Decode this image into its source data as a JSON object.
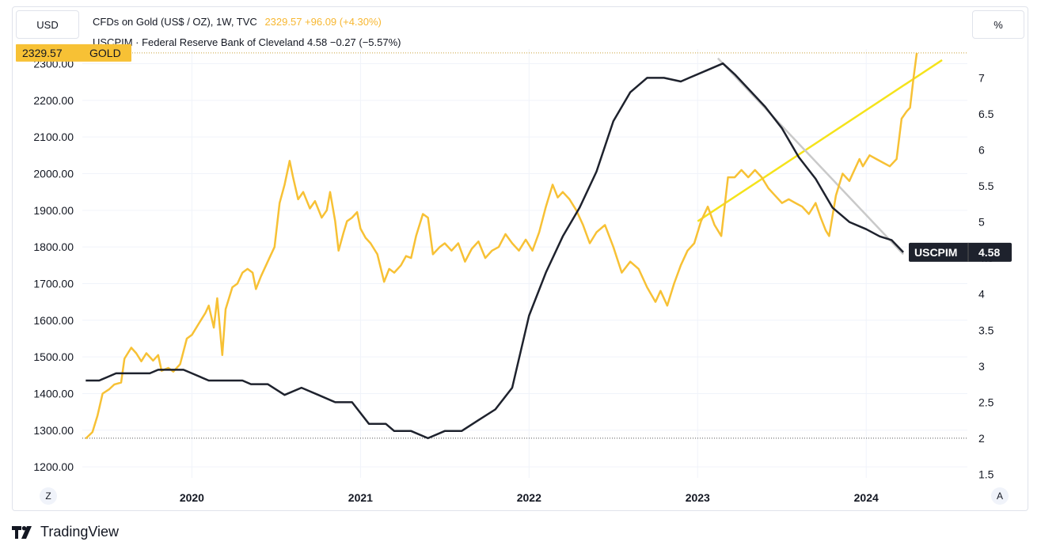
{
  "left_unit": "USD",
  "right_unit": "%",
  "legend": {
    "gold_prefix": "CFDs on Gold (US$ / OZ), 1W, TVC",
    "gold_values": "2329.57  +96.09 (+4.30%)",
    "cpi_text": "USCPIM · Federal Reserve Bank of Cleveland  4.58  −0.27 (−5.57%)"
  },
  "corner_left": "Z",
  "corner_right": "A",
  "brand_name": "TradingView",
  "colors": {
    "gold": "#f7c135",
    "cpi": "#1e222d",
    "trend_up": "#f5e31b",
    "trend_down": "#c9c9c9",
    "grid": "#f0f3fa"
  },
  "chart_data": {
    "type": "line",
    "x_tick_labels": [
      "2020",
      "2021",
      "2022",
      "2023",
      "2024"
    ],
    "left_axis": {
      "ticks": [
        "1200.00",
        "1300.00",
        "1400.00",
        "1500.00",
        "1600.00",
        "1700.00",
        "1800.00",
        "1900.00",
        "2000.00",
        "2100.00",
        "2200.00",
        "2300.00"
      ],
      "ylim": [
        1170,
        2340
      ]
    },
    "right_axis": {
      "ticks": [
        "1.5",
        "2",
        "2.5",
        "3",
        "3.5",
        "4",
        "4.5",
        "5",
        "5.5",
        "6",
        "6.5",
        "7"
      ],
      "ylim": [
        1.45,
        7.4
      ]
    },
    "xlim": [
      2019.35,
      2024.6
    ],
    "series": [
      {
        "name": "GOLD",
        "axis": "left",
        "last_label": "2329.57",
        "points": [
          [
            2019.37,
            1277
          ],
          [
            2019.41,
            1295
          ],
          [
            2019.44,
            1340
          ],
          [
            2019.47,
            1400
          ],
          [
            2019.51,
            1412
          ],
          [
            2019.54,
            1425
          ],
          [
            2019.58,
            1430
          ],
          [
            2019.6,
            1495
          ],
          [
            2019.64,
            1525
          ],
          [
            2019.67,
            1510
          ],
          [
            2019.7,
            1488
          ],
          [
            2019.73,
            1510
          ],
          [
            2019.77,
            1490
          ],
          [
            2019.8,
            1505
          ],
          [
            2019.82,
            1462
          ],
          [
            2019.86,
            1470
          ],
          [
            2019.89,
            1460
          ],
          [
            2019.93,
            1480
          ],
          [
            2019.97,
            1550
          ],
          [
            2020.0,
            1560
          ],
          [
            2020.04,
            1590
          ],
          [
            2020.08,
            1620
          ],
          [
            2020.1,
            1640
          ],
          [
            2020.13,
            1580
          ],
          [
            2020.15,
            1660
          ],
          [
            2020.18,
            1505
          ],
          [
            2020.2,
            1630
          ],
          [
            2020.24,
            1690
          ],
          [
            2020.27,
            1700
          ],
          [
            2020.3,
            1730
          ],
          [
            2020.33,
            1740
          ],
          [
            2020.36,
            1730
          ],
          [
            2020.38,
            1685
          ],
          [
            2020.41,
            1720
          ],
          [
            2020.45,
            1760
          ],
          [
            2020.49,
            1800
          ],
          [
            2020.52,
            1920
          ],
          [
            2020.55,
            1970
          ],
          [
            2020.58,
            2035
          ],
          [
            2020.6,
            1990
          ],
          [
            2020.63,
            1930
          ],
          [
            2020.66,
            1950
          ],
          [
            2020.7,
            1905
          ],
          [
            2020.73,
            1925
          ],
          [
            2020.77,
            1880
          ],
          [
            2020.8,
            1900
          ],
          [
            2020.82,
            1950
          ],
          [
            2020.85,
            1870
          ],
          [
            2020.87,
            1790
          ],
          [
            2020.9,
            1840
          ],
          [
            2020.92,
            1870
          ],
          [
            2020.95,
            1880
          ],
          [
            2020.98,
            1895
          ],
          [
            2021.0,
            1850
          ],
          [
            2021.03,
            1825
          ],
          [
            2021.06,
            1810
          ],
          [
            2021.1,
            1780
          ],
          [
            2021.14,
            1705
          ],
          [
            2021.17,
            1740
          ],
          [
            2021.2,
            1730
          ],
          [
            2021.24,
            1750
          ],
          [
            2021.27,
            1775
          ],
          [
            2021.3,
            1770
          ],
          [
            2021.33,
            1830
          ],
          [
            2021.37,
            1890
          ],
          [
            2021.4,
            1880
          ],
          [
            2021.43,
            1780
          ],
          [
            2021.47,
            1800
          ],
          [
            2021.5,
            1810
          ],
          [
            2021.54,
            1790
          ],
          [
            2021.58,
            1810
          ],
          [
            2021.62,
            1760
          ],
          [
            2021.66,
            1795
          ],
          [
            2021.7,
            1815
          ],
          [
            2021.74,
            1770
          ],
          [
            2021.78,
            1790
          ],
          [
            2021.82,
            1800
          ],
          [
            2021.86,
            1835
          ],
          [
            2021.9,
            1810
          ],
          [
            2021.94,
            1790
          ],
          [
            2021.98,
            1820
          ],
          [
            2022.02,
            1790
          ],
          [
            2022.06,
            1840
          ],
          [
            2022.1,
            1910
          ],
          [
            2022.14,
            1970
          ],
          [
            2022.17,
            1935
          ],
          [
            2022.2,
            1950
          ],
          [
            2022.24,
            1930
          ],
          [
            2022.28,
            1900
          ],
          [
            2022.32,
            1860
          ],
          [
            2022.36,
            1810
          ],
          [
            2022.4,
            1840
          ],
          [
            2022.45,
            1860
          ],
          [
            2022.5,
            1800
          ],
          [
            2022.55,
            1730
          ],
          [
            2022.6,
            1760
          ],
          [
            2022.65,
            1740
          ],
          [
            2022.7,
            1690
          ],
          [
            2022.75,
            1650
          ],
          [
            2022.78,
            1680
          ],
          [
            2022.82,
            1640
          ],
          [
            2022.86,
            1700
          ],
          [
            2022.9,
            1750
          ],
          [
            2022.94,
            1790
          ],
          [
            2022.98,
            1810
          ],
          [
            2023.02,
            1870
          ],
          [
            2023.06,
            1910
          ],
          [
            2023.1,
            1860
          ],
          [
            2023.14,
            1830
          ],
          [
            2023.18,
            1990
          ],
          [
            2023.22,
            1990
          ],
          [
            2023.26,
            2010
          ],
          [
            2023.3,
            1990
          ],
          [
            2023.34,
            2010
          ],
          [
            2023.38,
            1990
          ],
          [
            2023.42,
            1960
          ],
          [
            2023.46,
            1940
          ],
          [
            2023.5,
            1920
          ],
          [
            2023.54,
            1930
          ],
          [
            2023.58,
            1920
          ],
          [
            2023.62,
            1910
          ],
          [
            2023.66,
            1890
          ],
          [
            2023.7,
            1920
          ],
          [
            2023.73,
            1880
          ],
          [
            2023.76,
            1845
          ],
          [
            2023.78,
            1830
          ],
          [
            2023.82,
            1940
          ],
          [
            2023.86,
            2000
          ],
          [
            2023.9,
            1980
          ],
          [
            2023.93,
            2010
          ],
          [
            2023.96,
            2040
          ],
          [
            2023.98,
            2020
          ],
          [
            2024.02,
            2050
          ],
          [
            2024.06,
            2040
          ],
          [
            2024.1,
            2030
          ],
          [
            2024.14,
            2020
          ],
          [
            2024.18,
            2040
          ],
          [
            2024.21,
            2150
          ],
          [
            2024.24,
            2170
          ],
          [
            2024.26,
            2180
          ],
          [
            2024.28,
            2260
          ],
          [
            2024.3,
            2329.57
          ]
        ]
      },
      {
        "name": "USCPIM",
        "axis": "right",
        "last_label": "4.58",
        "points": [
          [
            2019.37,
            2.8
          ],
          [
            2019.45,
            2.8
          ],
          [
            2019.5,
            2.85
          ],
          [
            2019.55,
            2.9
          ],
          [
            2019.75,
            2.9
          ],
          [
            2019.8,
            2.95
          ],
          [
            2019.95,
            2.95
          ],
          [
            2020.0,
            2.9
          ],
          [
            2020.1,
            2.8
          ],
          [
            2020.3,
            2.8
          ],
          [
            2020.35,
            2.75
          ],
          [
            2020.45,
            2.75
          ],
          [
            2020.55,
            2.6
          ],
          [
            2020.65,
            2.7
          ],
          [
            2020.75,
            2.6
          ],
          [
            2020.85,
            2.5
          ],
          [
            2020.95,
            2.5
          ],
          [
            2021.05,
            2.2
          ],
          [
            2021.15,
            2.2
          ],
          [
            2021.2,
            2.1
          ],
          [
            2021.3,
            2.1
          ],
          [
            2021.4,
            2.0
          ],
          [
            2021.5,
            2.1
          ],
          [
            2021.6,
            2.1
          ],
          [
            2021.7,
            2.25
          ],
          [
            2021.8,
            2.4
          ],
          [
            2021.9,
            2.7
          ],
          [
            2022.0,
            3.7
          ],
          [
            2022.1,
            4.3
          ],
          [
            2022.2,
            4.8
          ],
          [
            2022.3,
            5.2
          ],
          [
            2022.4,
            5.7
          ],
          [
            2022.5,
            6.4
          ],
          [
            2022.6,
            6.8
          ],
          [
            2022.7,
            7.0
          ],
          [
            2022.8,
            7.0
          ],
          [
            2022.9,
            6.95
          ],
          [
            2022.95,
            7.0
          ],
          [
            2023.05,
            7.1
          ],
          [
            2023.15,
            7.2
          ],
          [
            2023.22,
            7.05
          ],
          [
            2023.3,
            6.85
          ],
          [
            2023.4,
            6.6
          ],
          [
            2023.5,
            6.3
          ],
          [
            2023.6,
            5.9
          ],
          [
            2023.7,
            5.6
          ],
          [
            2023.8,
            5.2
          ],
          [
            2023.9,
            5.0
          ],
          [
            2024.0,
            4.9
          ],
          [
            2024.08,
            4.8
          ],
          [
            2024.15,
            4.75
          ],
          [
            2024.22,
            4.58
          ]
        ]
      }
    ],
    "trend_lines": [
      {
        "axis": "left",
        "from": [
          2023.0,
          1870
        ],
        "to": [
          2024.45,
          2310
        ]
      },
      {
        "axis": "left",
        "from": [
          2023.12,
          2315
        ],
        "to": [
          2024.22,
          1780
        ]
      }
    ]
  }
}
